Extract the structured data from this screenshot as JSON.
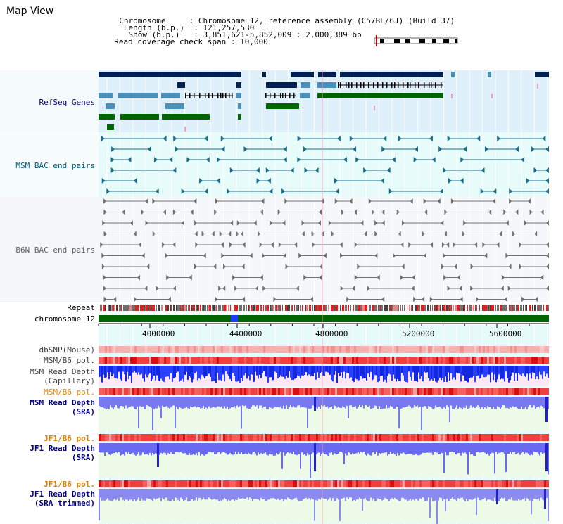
{
  "header": {
    "app_title": "Map View",
    "chromosome_label": "Chromosome",
    "chromosome_value": "Chromosome 12, reference assembly (C57BL/6J) (Build 37)",
    "length_label": "Length (b.p.)",
    "length_value": "121,257,530",
    "show_label": "Show (b.p.)",
    "show_value": "3,851,621-5,852,009 : 2,000,389 bp",
    "coverage_label": "Read coverage check span",
    "coverage_value": "10,000"
  },
  "tracks": {
    "refseq": "RefSeq Genes",
    "msm_bac": "MSM BAC end pairs",
    "b6n_bac": "B6N BAC end pairs",
    "repeat": "Repeat",
    "chromosome": "chromosome 12",
    "dbsnp": "dbSNP(Mouse)",
    "msm_b6_pol_1": "MSM/B6 pol.",
    "msm_depth_cap_1": "MSM Read Depth",
    "msm_depth_cap_2": "(Capillary)",
    "msm_b6_pol_2": "MSM/B6 pol.",
    "msm_depth_sra_1": "MSM Read Depth",
    "msm_depth_sra_2": "(SRA)",
    "jf1_b6_pol_1": "JF1/B6 pol.",
    "jf1_depth_sra_1": "JF1 Read Depth",
    "jf1_depth_sra_2": "(SRA)",
    "jf1_b6_pol_2": "JF1/B6 pol.",
    "jf1_depth_trim_1": "JF1 Read Depth",
    "jf1_depth_trim_2": "(SRA trimmed)"
  },
  "axis": {
    "ticks": [
      "4000000",
      "4400000",
      "4800000",
      "5200000",
      "5600000"
    ]
  },
  "colors": {
    "refseq_label": "#000080",
    "msm_label": "#006080",
    "b6n_label": "#606060",
    "pol_label": "#e08000",
    "depth_label": "#000080",
    "gene_dark": "#002050",
    "gene_mid": "#4a8fb8",
    "gene_green": "#006400",
    "msm_pair": "#1a6e8a",
    "b6n_pair": "#707070",
    "chromosome_bar": "#006400"
  }
}
